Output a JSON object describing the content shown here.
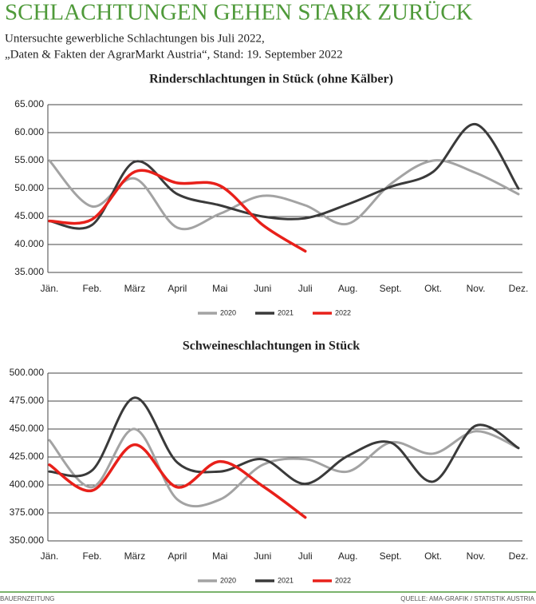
{
  "header": {
    "title": "SCHLACHTUNGEN GEHEN STARK ZURÜCK",
    "subtitle": [
      "Untersuchte gewerbliche Schlachtungen bis Juli 2022,",
      "„Daten & Fakten der AgrarMarkt Austria“, Stand: 19. September 2022"
    ]
  },
  "chart_data": [
    {
      "type": "line",
      "title": "Rinderschlachtungen in Stück (ohne Kälber)",
      "categories": [
        "Jän.",
        "Feb.",
        "März",
        "April",
        "Mai",
        "Juni",
        "Juli",
        "Aug.",
        "Sept.",
        "Okt.",
        "Nov.",
        "Dez."
      ],
      "series": [
        {
          "name": "2020",
          "color": "#a3a3a3",
          "values": [
            55000,
            46800,
            51800,
            43000,
            45500,
            48700,
            47000,
            43700,
            50800,
            55000,
            52800,
            49000
          ]
        },
        {
          "name": "2021",
          "color": "#3a3a3a",
          "values": [
            44200,
            43500,
            54800,
            49000,
            47000,
            45000,
            44700,
            47200,
            50300,
            53000,
            61500,
            50000
          ]
        },
        {
          "name": "2022",
          "color": "#e8201a",
          "values": [
            44200,
            44500,
            53000,
            51000,
            50500,
            43500,
            38800,
            null,
            null,
            null,
            null,
            null
          ]
        }
      ],
      "ylim": [
        35000,
        65000
      ],
      "yticks": [
        {
          "value": 35000,
          "label": "35.000"
        },
        {
          "value": 40000,
          "label": "40.000"
        },
        {
          "value": 45000,
          "label": "45.000"
        },
        {
          "value": 50000,
          "label": "50.000"
        },
        {
          "value": 55000,
          "label": "55.000"
        },
        {
          "value": 60000,
          "label": "60.000"
        },
        {
          "value": 65000,
          "label": "65.000"
        }
      ],
      "grid": true,
      "legend": "bottom"
    },
    {
      "type": "line",
      "title": "Schweineschlachtungen in Stück",
      "categories": [
        "Jän.",
        "Feb.",
        "März",
        "April",
        "Mai",
        "Juni",
        "Juli",
        "Aug.",
        "Sept.",
        "Okt.",
        "Nov.",
        "Dez."
      ],
      "series": [
        {
          "name": "2020",
          "color": "#a3a3a3",
          "values": [
            440000,
            398000,
            450000,
            387000,
            387000,
            418000,
            423000,
            412000,
            438000,
            428000,
            448000,
            433000
          ]
        },
        {
          "name": "2021",
          "color": "#3a3a3a",
          "values": [
            412000,
            413000,
            478000,
            420000,
            412000,
            423000,
            401000,
            426000,
            438000,
            403000,
            453000,
            433000
          ]
        },
        {
          "name": "2022",
          "color": "#e8201a",
          "values": [
            418000,
            395000,
            436000,
            398000,
            421000,
            399000,
            371000,
            null,
            null,
            null,
            null,
            null
          ]
        }
      ],
      "ylim": [
        350000,
        500000
      ],
      "yticks": [
        {
          "value": 350000,
          "label": "350.000"
        },
        {
          "value": 375000,
          "label": "375.000"
        },
        {
          "value": 400000,
          "label": "400.000"
        },
        {
          "value": 425000,
          "label": "425.000"
        },
        {
          "value": 450000,
          "label": "450.000"
        },
        {
          "value": 475000,
          "label": "475.000"
        },
        {
          "value": 500000,
          "label": "500.000"
        }
      ],
      "grid": true,
      "legend": "bottom"
    }
  ],
  "footer": {
    "left": "BAUERNZEITUNG",
    "right": "QUELLE: AMA-GRAFIK / STATISTIK AUSTRIA"
  }
}
